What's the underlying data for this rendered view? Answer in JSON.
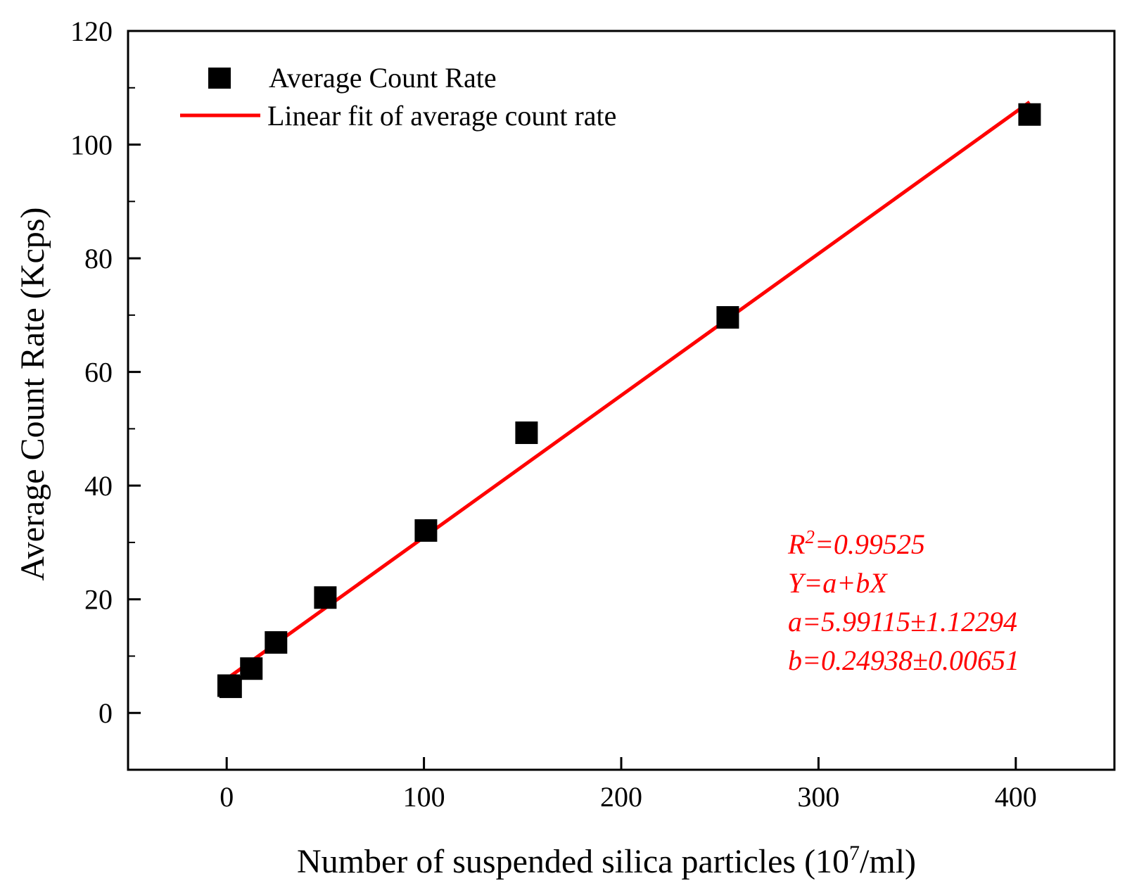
{
  "chart_data": {
    "type": "scatter",
    "title": "",
    "xlabel": "Number of suspended silica particles (10",
    "xlabel_sup": "7",
    "xlabel_end": "/ml)",
    "ylabel": "Average Count Rate (Kcps)",
    "xlim": [
      -50,
      450
    ],
    "ylim": [
      -10,
      120
    ],
    "xticks": [
      0,
      100,
      200,
      300,
      400
    ],
    "yticks": [
      0,
      20,
      40,
      60,
      80,
      100,
      120
    ],
    "series": [
      {
        "name": "Average Count Rate",
        "kind": "scatter",
        "marker": "square",
        "color": "#000000",
        "x": [
          1,
          2,
          12.5,
          25,
          50,
          101,
          152,
          254,
          407
        ],
        "y": [
          4.8,
          4.6,
          7.8,
          12.4,
          20.3,
          32.1,
          49.3,
          69.6,
          105.3
        ]
      },
      {
        "name": "Linear fit of average count rate",
        "kind": "line",
        "color": "#ff0000",
        "x": [
          1,
          407
        ],
        "y": [
          6.24,
          107.49
        ]
      }
    ],
    "legend_position": "top-left",
    "annotations": {
      "color": "#ff0000",
      "r2_prefix": "R",
      "r2_sup": "2",
      "r2_value": "=0.99525",
      "equation": "Y=a+bX",
      "a_line": "a=5.99115±1.12294",
      "b_line": "b=0.24938±0.00651"
    }
  }
}
